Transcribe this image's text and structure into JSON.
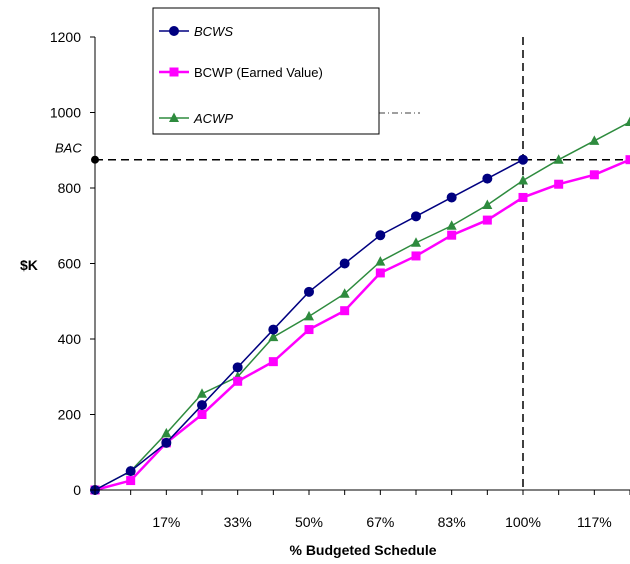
{
  "chart_data": {
    "type": "line",
    "xlabel": "% Budgeted Schedule",
    "ylabel": "$K",
    "ylim": [
      0,
      1200
    ],
    "y_ticks": [
      0,
      200,
      400,
      600,
      800,
      1000,
      1200
    ],
    "x_tick_labels": [
      "17%",
      "33%",
      "50%",
      "67%",
      "83%",
      "100%",
      "117%"
    ],
    "x_tick_values": [
      2,
      4,
      6,
      8,
      10,
      12,
      14
    ],
    "xlim": [
      0,
      15
    ],
    "grid": false,
    "legend_position": "top-center",
    "bac_label": "BAC",
    "bac_value": 875,
    "completion_x": 12,
    "series": [
      {
        "name": "BCWS",
        "color": "#000080",
        "marker": "circle",
        "italic": true,
        "x": [
          0,
          1,
          2,
          3,
          4,
          5,
          6,
          7,
          8,
          9,
          10,
          11,
          12
        ],
        "values": [
          0,
          50,
          125,
          225,
          325,
          425,
          525,
          600,
          675,
          725,
          775,
          825,
          875
        ]
      },
      {
        "name": "BCWP (Earned Value)",
        "color": "#FF00FF",
        "marker": "square",
        "italic": false,
        "x": [
          0,
          1,
          2,
          3,
          4,
          5,
          6,
          7,
          8,
          9,
          10,
          11,
          12,
          13,
          14,
          15
        ],
        "values": [
          0,
          25,
          125,
          200,
          288,
          340,
          425,
          475,
          575,
          620,
          675,
          715,
          775,
          810,
          835,
          875
        ]
      },
      {
        "name": "ACWP",
        "color": "#2E8B3E",
        "marker": "triangle",
        "italic": true,
        "x": [
          0,
          1,
          2,
          3,
          4,
          5,
          6,
          7,
          8,
          9,
          10,
          11,
          12,
          13,
          14,
          15
        ],
        "values": [
          0,
          50,
          150,
          255,
          300,
          405,
          460,
          520,
          605,
          655,
          700,
          755,
          820,
          875,
          925,
          975
        ]
      }
    ]
  }
}
